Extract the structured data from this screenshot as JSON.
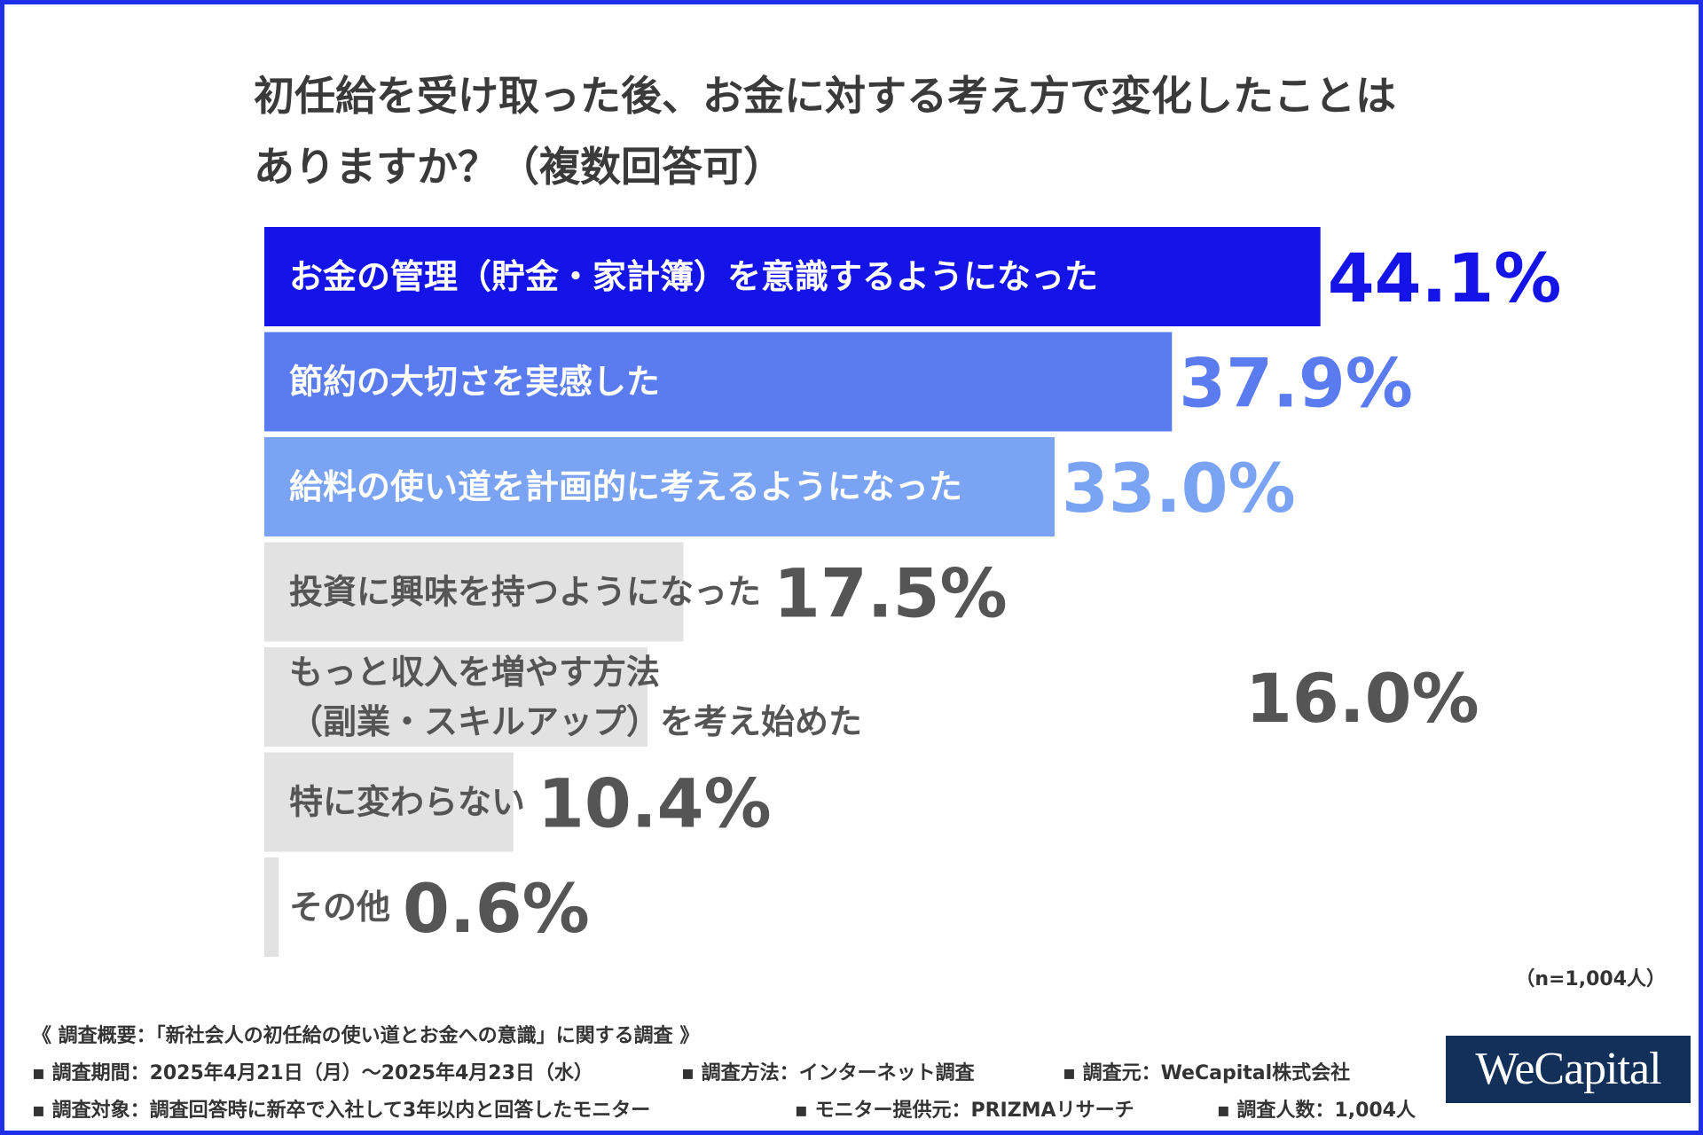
{
  "title_lines": [
    "初任給を受け取った後、お金に対する考え方で変化したことは",
    "ありますか？（複数回答可）"
  ],
  "chart_data": {
    "type": "bar",
    "orientation": "horizontal",
    "unit": "%",
    "categories": [
      [
        "お金の管理（貯金・家計簿）を意識するようになった"
      ],
      [
        "節約の大切さを実感した"
      ],
      [
        "給料の使い道を計画的に考えるようになった"
      ],
      [
        "投資に興味を持つようになった"
      ],
      [
        "もっと収入を増やす方法",
        "（副業・スキルアップ）を考え始めた"
      ],
      [
        "特に変わらない"
      ],
      [
        "その他"
      ]
    ],
    "values": [
      44.1,
      37.9,
      33.0,
      17.5,
      16.0,
      10.4,
      0.6
    ],
    "value_labels": [
      "44.1%",
      "37.9%",
      "33.0%",
      "17.5%",
      "16.0%",
      "10.4%",
      "0.6%"
    ],
    "bar_colors": [
      "#1414e8",
      "#5b7cf0",
      "#7ba3f4",
      "#e2e2e2",
      "#e2e2e2",
      "#e2e2e2",
      "#e2e2e2"
    ],
    "label_colors": [
      "#ffffff",
      "#ffffff",
      "#ffffff",
      "#555555",
      "#555555",
      "#555555",
      "#555555"
    ],
    "value_colors": [
      "#1414e8",
      "#5b7cf0",
      "#7ba3f4",
      "#555555",
      "#555555",
      "#555555",
      "#555555"
    ]
  },
  "sample_note": "（n=1,004人）",
  "footer": {
    "heading": "《 調査概要：「新社会人の初任給の使い道とお金への意識」に関する調査 》",
    "period": "▪ 調査期間：2025年4月21日（月）～2025年4月23日（水）",
    "method": "▪ 調査方法：インターネット調査",
    "source": "▪ 調査元：WeCapital株式会社",
    "target": "▪ 調査対象：調査回答時に新卒で入社して3年以内と回答したモニター",
    "provider": "▪ モニター提供元：PRIZMAリサーチ",
    "count": "▪ 調査人数：1,004人"
  },
  "logo_text": "WeCapital"
}
